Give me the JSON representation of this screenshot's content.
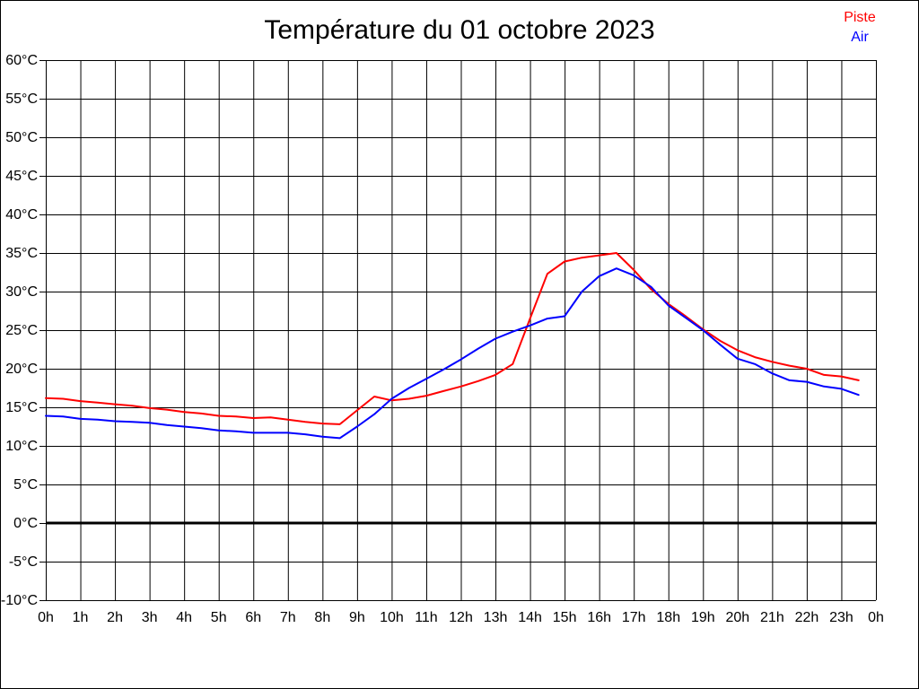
{
  "title": "Température du 01 octobre 2023",
  "legend": {
    "position": "top-right",
    "entries": [
      {
        "label": "Piste",
        "color": "#ff0000"
      },
      {
        "label": "Air",
        "color": "#0000ff"
      }
    ]
  },
  "chart_data": {
    "type": "line",
    "title": "Température du 01 octobre 2023",
    "xlabel": "",
    "ylabel": "",
    "xlim": [
      0,
      24
    ],
    "ylim": [
      -10,
      60
    ],
    "y_tick_step": 5,
    "grid": true,
    "grid_color": "#000000",
    "zero_line": true,
    "zero_line_value": 0,
    "legend_position": "top-right",
    "y_ticklabels": [
      "60°C",
      "55°C",
      "50°C",
      "45°C",
      "40°C",
      "35°C",
      "30°C",
      "25°C",
      "20°C",
      "15°C",
      "10°C",
      "5°C",
      "0°C",
      "-5°C",
      "-10°C"
    ],
    "x_ticklabels": [
      "0h",
      "1h",
      "2h",
      "3h",
      "4h",
      "5h",
      "6h",
      "7h",
      "8h",
      "9h",
      "10h",
      "11h",
      "12h",
      "13h",
      "14h",
      "15h",
      "16h",
      "17h",
      "18h",
      "19h",
      "20h",
      "21h",
      "22h",
      "23h",
      "0h"
    ],
    "x": [
      0,
      0.5,
      1,
      1.5,
      2,
      2.5,
      3,
      3.5,
      4,
      4.5,
      5,
      5.5,
      6,
      6.5,
      7,
      7.5,
      8,
      8.5,
      9,
      9.5,
      10,
      10.5,
      11,
      11.5,
      12,
      12.5,
      13,
      13.5,
      14,
      14.5,
      15,
      15.5,
      16,
      16.5,
      17,
      17.5,
      18,
      18.5,
      19,
      19.5,
      20,
      20.5,
      21,
      21.5,
      22,
      22.5,
      23,
      23.5
    ],
    "series": [
      {
        "name": "Piste",
        "color": "#ff0000",
        "values": [
          16.2,
          16.1,
          15.8,
          15.6,
          15.4,
          15.2,
          14.9,
          14.7,
          14.4,
          14.2,
          13.9,
          13.8,
          13.6,
          13.7,
          13.4,
          13.1,
          12.9,
          12.8,
          14.6,
          16.4,
          15.9,
          16.1,
          16.5,
          17.1,
          17.7,
          18.4,
          19.2,
          20.6,
          26.5,
          32.3,
          33.9,
          34.4,
          34.7,
          35.0,
          32.8,
          30.3,
          28.4,
          26.8,
          25.1,
          23.6,
          22.4,
          21.5,
          20.9,
          20.4,
          20.0,
          19.2,
          19.0,
          18.5
        ]
      },
      {
        "name": "Air",
        "color": "#0000ff",
        "values": [
          13.9,
          13.8,
          13.5,
          13.4,
          13.2,
          13.1,
          13.0,
          12.7,
          12.5,
          12.3,
          12.0,
          11.9,
          11.7,
          11.7,
          11.7,
          11.5,
          11.2,
          11.0,
          12.5,
          14.1,
          16.1,
          17.5,
          18.7,
          19.9,
          21.2,
          22.6,
          23.9,
          24.8,
          25.6,
          26.5,
          26.8,
          30.0,
          32.0,
          33.0,
          32.1,
          30.6,
          28.2,
          26.6,
          25.0,
          23.1,
          21.3,
          20.6,
          19.4,
          18.5,
          18.3,
          17.7,
          17.4,
          16.6
        ]
      }
    ]
  }
}
